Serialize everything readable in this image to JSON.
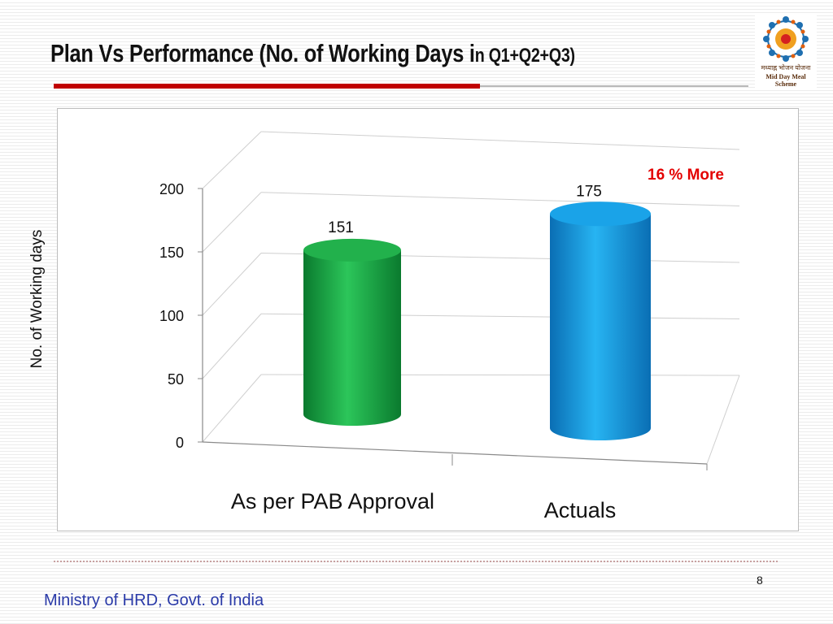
{
  "slide": {
    "title_main": "Plan Vs Performance (No. of Working Days i",
    "title_small": "n Q1+Q2+Q3)",
    "footer": "Ministry of HRD, Govt. of India",
    "page_number": "8",
    "logo": {
      "icon": "mid-day-meal-scheme-logo",
      "line1": "मध्याह्न भोजन योजना",
      "line2": "Mid Day Meal Scheme"
    }
  },
  "chart_data": {
    "type": "bar",
    "style": "3d-cylinder",
    "categories": [
      "As per PAB Approval",
      "Actuals"
    ],
    "values": [
      151,
      175
    ],
    "data_labels": [
      "151",
      "175"
    ],
    "bar_colors": [
      "#22b14c",
      "#1aa3e8"
    ],
    "title": "",
    "xlabel": "",
    "ylabel": "No. of Working days",
    "ylim": [
      0,
      200
    ],
    "yticks": [
      0,
      50,
      100,
      150,
      200
    ],
    "grid": true,
    "legend": "none",
    "annotation": "16 % More",
    "annotation_color": "#e30000"
  }
}
